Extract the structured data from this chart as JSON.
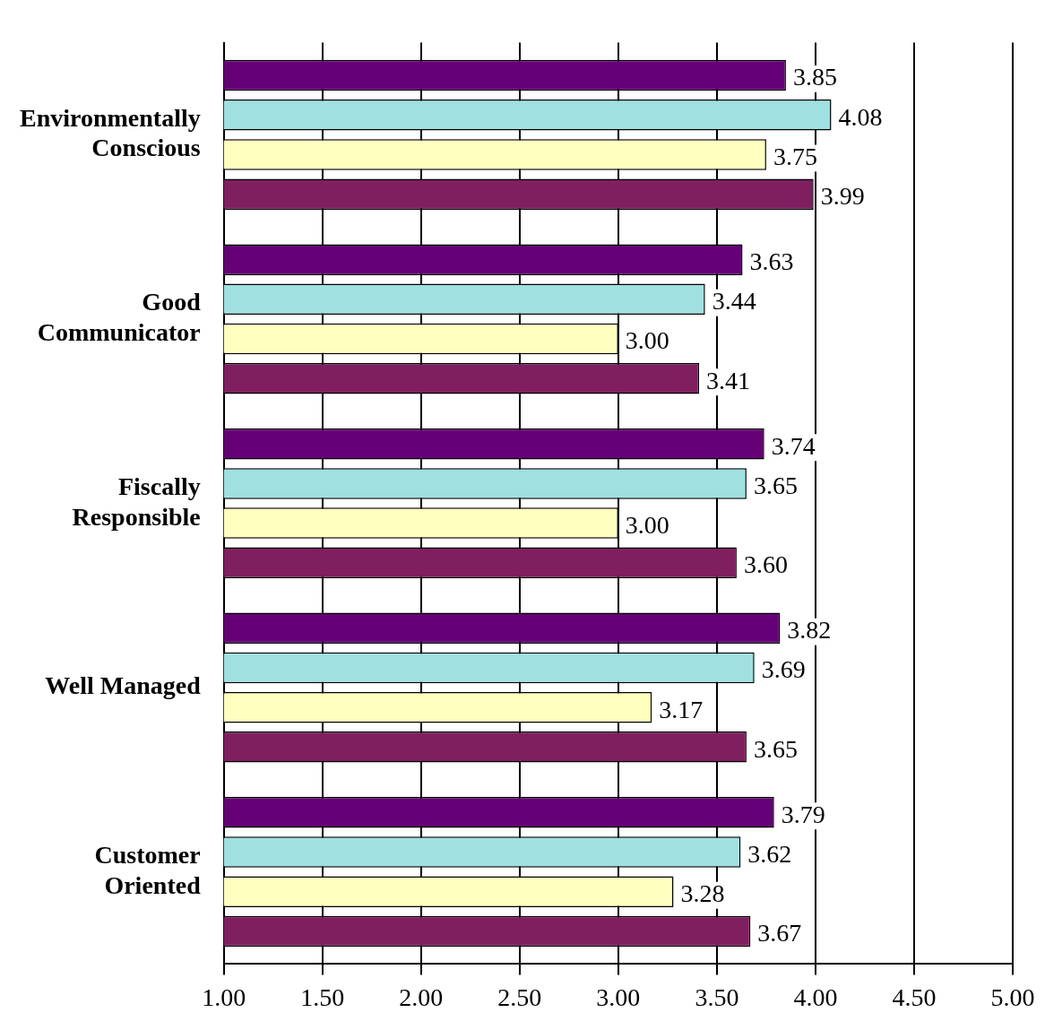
{
  "chart_data": {
    "type": "bar",
    "orientation": "horizontal",
    "categories": [
      "Environmentally Conscious",
      "Good Communicator",
      "Fiscally Responsible",
      "Well Managed",
      "Customer Oriented"
    ],
    "series": [
      {
        "color": "#660077",
        "values": [
          3.85,
          3.63,
          3.74,
          3.82,
          3.79
        ],
        "value_labels": [
          "3.85",
          "3.63",
          "3.74",
          "3.82",
          "3.79"
        ]
      },
      {
        "color": "#a0e0e0",
        "values": [
          4.08,
          3.44,
          3.65,
          3.69,
          3.62
        ],
        "value_labels": [
          "4.08",
          "3.44",
          "3.65",
          "3.69",
          "3.62"
        ]
      },
      {
        "color": "#ffffc0",
        "values": [
          3.75,
          3.0,
          3.0,
          3.17,
          3.28
        ],
        "value_labels": [
          "3.75",
          "3.00",
          "3.00",
          "3.17",
          "3.28"
        ]
      },
      {
        "color": "#7f1f5f",
        "values": [
          3.99,
          3.41,
          3.6,
          3.65,
          3.67
        ],
        "value_labels": [
          "3.99",
          "3.41",
          "3.60",
          "3.65",
          "3.67"
        ]
      }
    ],
    "xlim": [
      1,
      5
    ],
    "xticks": [
      {
        "value": 1,
        "label": "1.00"
      },
      {
        "value": 1.5,
        "label": "1.50"
      },
      {
        "value": 2,
        "label": "2.00"
      },
      {
        "value": 2.5,
        "label": "2.50"
      },
      {
        "value": 3,
        "label": "3.00"
      },
      {
        "value": 3.5,
        "label": "3.50"
      },
      {
        "value": 4,
        "label": "4.00"
      },
      {
        "value": 4.5,
        "label": "4.50"
      },
      {
        "value": 5,
        "label": "5.00"
      }
    ],
    "grid": "x",
    "legend": false
  }
}
